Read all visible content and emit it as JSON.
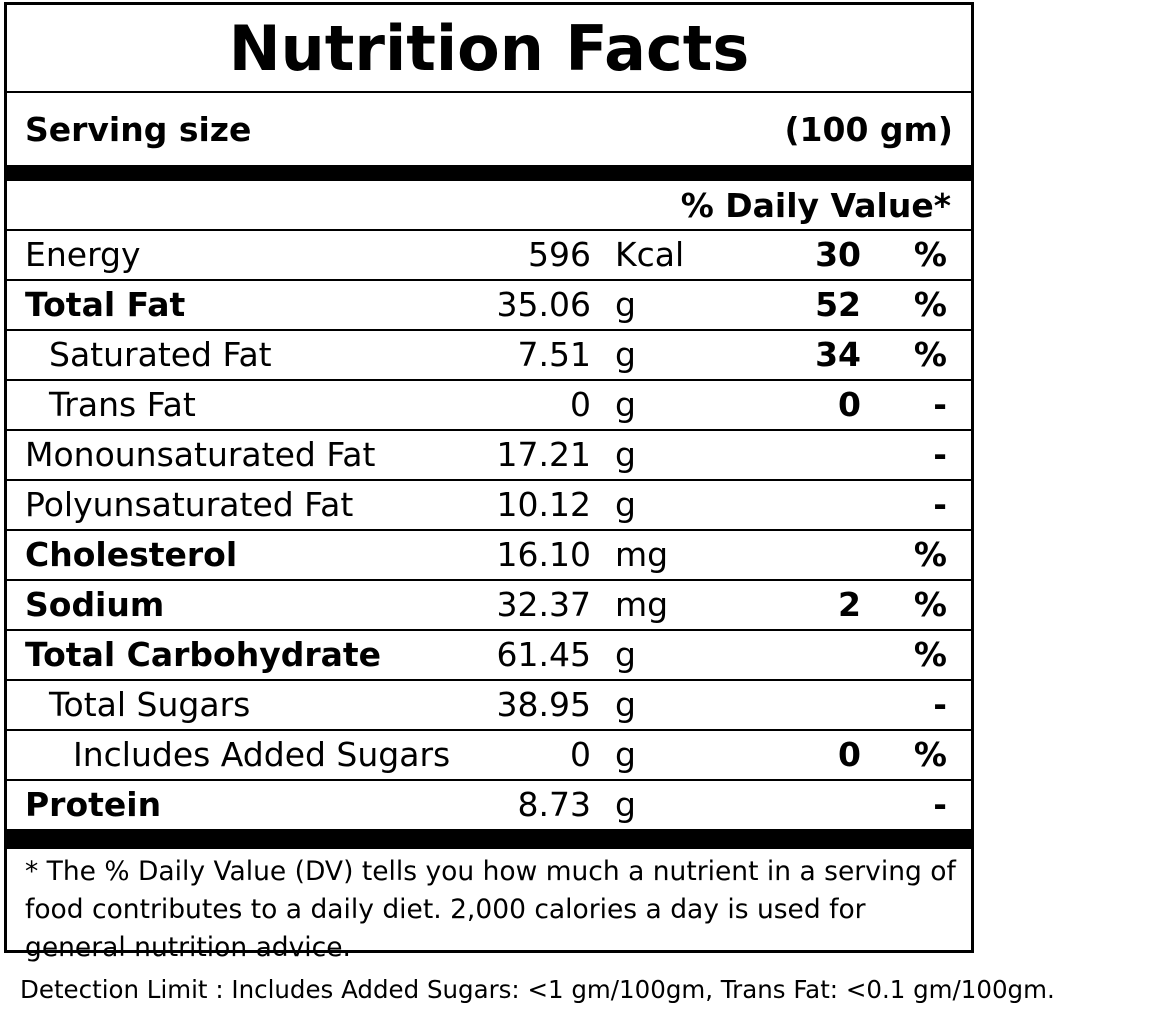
{
  "title": "Nutrition Facts",
  "serving": {
    "label": "Serving size",
    "value": "(100 gm)"
  },
  "dv_header": "% Daily Value*",
  "rows": [
    {
      "name": "Energy",
      "amount": "596",
      "unit": "Kcal",
      "dv": "30",
      "pct": "%"
    },
    {
      "name": "Total Fat",
      "amount": "35.06",
      "unit": "g",
      "dv": "52",
      "pct": "%"
    },
    {
      "name": "Saturated Fat",
      "amount": "7.51",
      "unit": "g",
      "dv": "34",
      "pct": "%"
    },
    {
      "name": "Trans Fat",
      "amount": "0",
      "unit": "g",
      "dv": "0",
      "pct": "-"
    },
    {
      "name": "Monounsaturated Fat",
      "amount": "17.21",
      "unit": "g",
      "dv": "",
      "pct": "-"
    },
    {
      "name": "Polyunsaturated Fat",
      "amount": "10.12",
      "unit": "g",
      "dv": "",
      "pct": "-"
    },
    {
      "name": "Cholesterol",
      "amount": "16.10",
      "unit": "mg",
      "dv": "",
      "pct": "%"
    },
    {
      "name": "Sodium",
      "amount": "32.37",
      "unit": "mg",
      "dv": "2",
      "pct": "%"
    },
    {
      "name": "Total Carbohydrate",
      "amount": "61.45",
      "unit": "g",
      "dv": "",
      "pct": "%"
    },
    {
      "name": "Total Sugars",
      "amount": "38.95",
      "unit": "g",
      "dv": "",
      "pct": "-"
    },
    {
      "name": "Includes Added Sugars",
      "amount": "0",
      "unit": "g",
      "dv": "0",
      "pct": "%"
    },
    {
      "name": "Protein",
      "amount": "8.73",
      "unit": "g",
      "dv": "",
      "pct": "-"
    }
  ],
  "footnote": "* The % Daily Value (DV) tells you how much a nutrient in a serving of food contributes to a daily diet. 2,000 calories a day is used for general nutrition advice.",
  "detection_limit": "Detection Limit : Includes Added Sugars: <1 gm/100gm, Trans Fat: <0.1 gm/100gm."
}
